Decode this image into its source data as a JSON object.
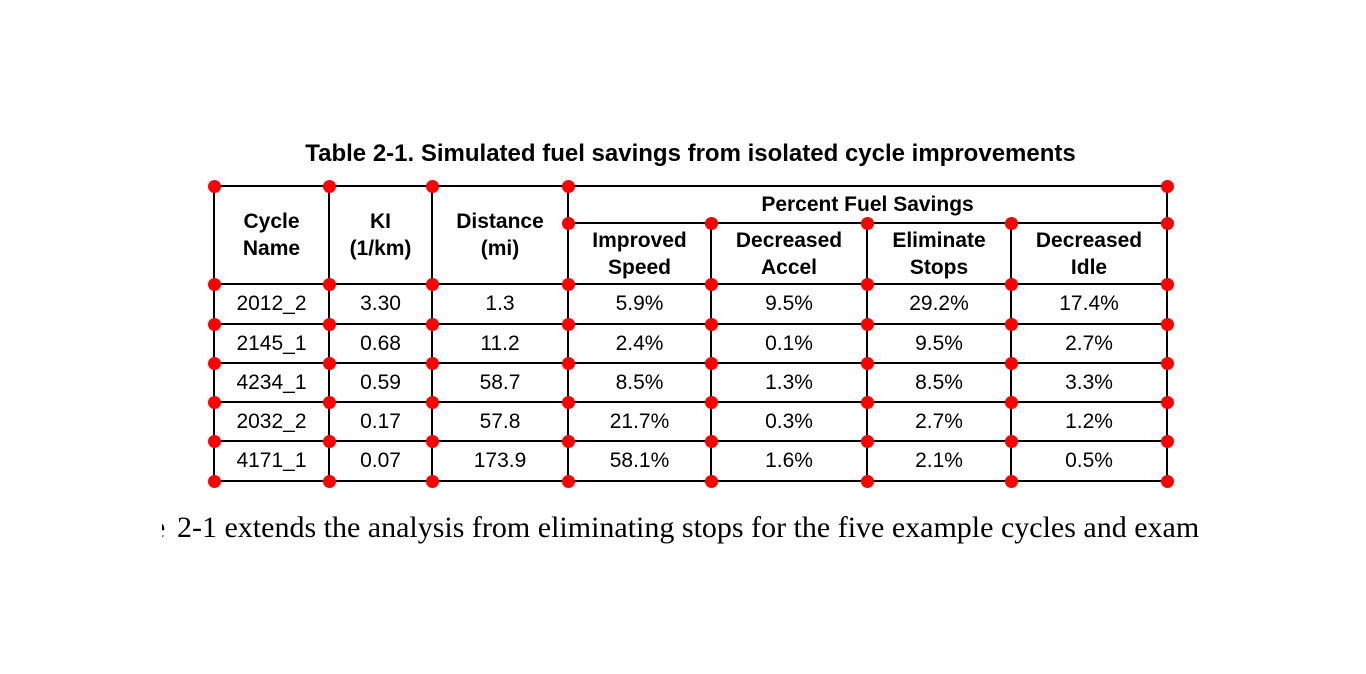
{
  "page": {
    "title": "Table 2-1. Simulated fuel savings from isolated cycle improvements"
  },
  "table": {
    "headers": {
      "cycle_name": "Cycle\nName",
      "ki": "KI\n(1/km)",
      "distance": "Distance\n(mi)",
      "group": "Percent Fuel Savings",
      "improved_speed": "Improved\nSpeed",
      "decreased_accel": "Decreased\nAccel",
      "eliminate_stops": "Eliminate\nStops",
      "decreased_idle": "Decreased\nIdle"
    },
    "rows": [
      {
        "cycle": "2012_2",
        "ki": "3.30",
        "distance": "1.3",
        "improved_speed": "5.9%",
        "decreased_accel": "9.5%",
        "eliminate_stops": "29.2%",
        "decreased_idle": "17.4%"
      },
      {
        "cycle": "2145_1",
        "ki": "0.68",
        "distance": "11.2",
        "improved_speed": "2.4%",
        "decreased_accel": "0.1%",
        "eliminate_stops": "9.5%",
        "decreased_idle": "2.7%"
      },
      {
        "cycle": "4234_1",
        "ki": "0.59",
        "distance": "58.7",
        "improved_speed": "8.5%",
        "decreased_accel": "1.3%",
        "eliminate_stops": "8.5%",
        "decreased_idle": "3.3%"
      },
      {
        "cycle": "2032_2",
        "ki": "0.17",
        "distance": "57.8",
        "improved_speed": "21.7%",
        "decreased_accel": "0.3%",
        "eliminate_stops": "2.7%",
        "decreased_idle": "1.2%"
      },
      {
        "cycle": "4171_1",
        "ki": "0.07",
        "distance": "173.9",
        "improved_speed": "58.1%",
        "decreased_accel": "1.6%",
        "eliminate_stops": "2.1%",
        "decreased_idle": "0.5%"
      }
    ]
  },
  "body_text": {
    "partial_char": "e",
    "fragment": "2-1 extends the analysis from eliminating stops for the five example cycles and exam"
  },
  "colors": {
    "marker": "#ff0000",
    "border": "#000000",
    "background": "#ffffff"
  }
}
